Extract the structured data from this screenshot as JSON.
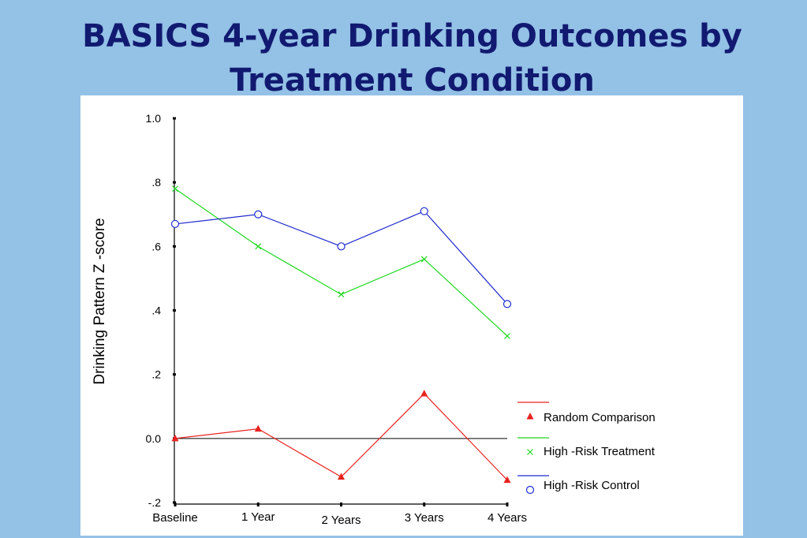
{
  "slide": {
    "title_line1": "BASICS 4-year Drinking Outcomes by",
    "title_line2": "Treatment Condition"
  },
  "chart_data": {
    "type": "line",
    "title": "",
    "xlabel": "",
    "ylabel": "Drinking Pattern Z     -score",
    "categories": [
      "Baseline",
      "1 Year",
      "2 Years",
      "3 Years",
      "4 Years"
    ],
    "ylim": [
      -0.2,
      1.0
    ],
    "yticks": [
      {
        "value": 1.0,
        "label": "1.0"
      },
      {
        "value": 0.8,
        "label": ".8"
      },
      {
        "value": 0.6,
        "label": ".6"
      },
      {
        "value": 0.4,
        "label": ".4"
      },
      {
        "value": 0.2,
        "label": ".2"
      },
      {
        "value": 0.0,
        "label": "0.0"
      },
      {
        "value": -0.2,
        "label": "-.2"
      }
    ],
    "reference_line": 0.0,
    "grid": false,
    "legend_position": "bottom-right",
    "series": [
      {
        "name": "Random Comparison",
        "color": "#e8221f",
        "marker": "triangle",
        "values": [
          0.0,
          0.03,
          -0.12,
          0.14,
          -0.13
        ]
      },
      {
        "name": "High   -Risk Treatment",
        "color": "#1fd81f",
        "marker": "x",
        "values": [
          0.78,
          0.6,
          0.45,
          0.56,
          0.32
        ]
      },
      {
        "name": "High   -Risk Control",
        "color": "#1f2bd0",
        "marker": "circle",
        "values": [
          0.67,
          0.7,
          0.6,
          0.71,
          0.42
        ]
      }
    ]
  }
}
